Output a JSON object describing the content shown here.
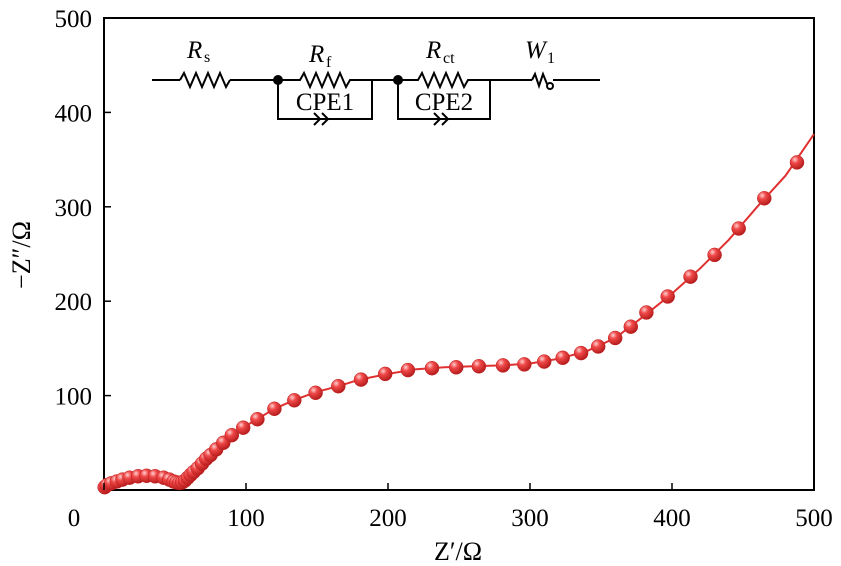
{
  "chart_data": {
    "type": "scatter",
    "xlabel": "Z′/Ω",
    "ylabel": "−Z″/Ω",
    "xlim": [
      0,
      500
    ],
    "ylim": [
      0,
      500
    ],
    "xticks": [
      0,
      100,
      200,
      300,
      400,
      500
    ],
    "yticks": [
      100,
      200,
      300,
      400,
      500
    ],
    "grid": false,
    "legend": "none",
    "colors": {
      "points": "#e03030",
      "fit_line": "#e03030",
      "axes": "#000000"
    },
    "series": [
      {
        "marker": "sphere",
        "points": [
          [
            0.5,
            3
          ],
          [
            2,
            5
          ],
          [
            5,
            7
          ],
          [
            9,
            9
          ],
          [
            13,
            11
          ],
          [
            18,
            13
          ],
          [
            24,
            14.5
          ],
          [
            30,
            15
          ],
          [
            36,
            14.5
          ],
          [
            42,
            13
          ],
          [
            46,
            11
          ],
          [
            49,
            9
          ],
          [
            51,
            8
          ],
          [
            53,
            7.5
          ],
          [
            55,
            8
          ],
          [
            57,
            10
          ],
          [
            59,
            13
          ],
          [
            61,
            16
          ],
          [
            63,
            19
          ],
          [
            66,
            23
          ],
          [
            69,
            28
          ],
          [
            72,
            33
          ],
          [
            75,
            37
          ],
          [
            79,
            43
          ],
          [
            84,
            50
          ],
          [
            90,
            58
          ],
          [
            98,
            66
          ],
          [
            108,
            75
          ],
          [
            120,
            86
          ],
          [
            134,
            95
          ],
          [
            149,
            103
          ],
          [
            165,
            110
          ],
          [
            181,
            117
          ],
          [
            198,
            123
          ],
          [
            214,
            127
          ],
          [
            231,
            129
          ],
          [
            248,
            130
          ],
          [
            264,
            131
          ],
          [
            281,
            132
          ],
          [
            296,
            133
          ],
          [
            310,
            136
          ],
          [
            323,
            140
          ],
          [
            336,
            145
          ],
          [
            348,
            152
          ],
          [
            360,
            161
          ],
          [
            371,
            173
          ],
          [
            382,
            188
          ],
          [
            397,
            205
          ],
          [
            413,
            226
          ],
          [
            430,
            249
          ],
          [
            447,
            277
          ],
          [
            465,
            309
          ],
          [
            488,
            347
          ]
        ]
      }
    ],
    "fit_line": [
      [
        0,
        2
      ],
      [
        5,
        7
      ],
      [
        10,
        10
      ],
      [
        15,
        12
      ],
      [
        20,
        14
      ],
      [
        25,
        15
      ],
      [
        30,
        15
      ],
      [
        35,
        14.8
      ],
      [
        40,
        13.5
      ],
      [
        45,
        11.5
      ],
      [
        50,
        8.5
      ],
      [
        53,
        7.5
      ],
      [
        56,
        8.5
      ],
      [
        60,
        14
      ],
      [
        65,
        21
      ],
      [
        70,
        30
      ],
      [
        75,
        37
      ],
      [
        80,
        45
      ],
      [
        90,
        58
      ],
      [
        100,
        68
      ],
      [
        110,
        77
      ],
      [
        120,
        86
      ],
      [
        135,
        96
      ],
      [
        150,
        104
      ],
      [
        165,
        110
      ],
      [
        180,
        117
      ],
      [
        200,
        123
      ],
      [
        220,
        128
      ],
      [
        240,
        130
      ],
      [
        260,
        131
      ],
      [
        280,
        132
      ],
      [
        300,
        134
      ],
      [
        320,
        139
      ],
      [
        340,
        147
      ],
      [
        360,
        161
      ],
      [
        380,
        184
      ],
      [
        400,
        208
      ],
      [
        420,
        235
      ],
      [
        440,
        265
      ],
      [
        460,
        300
      ],
      [
        480,
        333
      ],
      [
        500,
        377
      ]
    ],
    "circuit": {
      "elements": [
        {
          "symbol": "R",
          "sub": "s"
        },
        {
          "symbol": "R",
          "sub": "f"
        },
        {
          "symbol": "R",
          "sub": "ct"
        },
        {
          "symbol": "W",
          "sub": "1"
        }
      ],
      "cpe_labels": [
        "CPE1",
        "CPE2"
      ]
    }
  }
}
